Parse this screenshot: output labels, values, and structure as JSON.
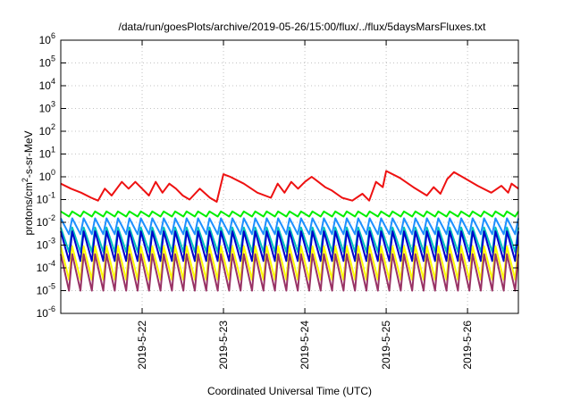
{
  "chart_data": {
    "type": "line",
    "title": "/data/run/goesPlots/archive/2019-05-26/15:00/flux/../flux/5daysMarsFluxes.txt",
    "xlabel": "Coordinated Universal Time (UTC)",
    "ylabel_main": "protons/cm",
    "ylabel_sup": "2",
    "ylabel_rest": "-s-sr-MeV",
    "y_scale": "log",
    "ylim": [
      1e-06,
      1000000.0
    ],
    "y_ticks": [
      {
        "base": "10",
        "exp": "-6",
        "value": 1e-06
      },
      {
        "base": "10",
        "exp": "-5",
        "value": 1e-05
      },
      {
        "base": "10",
        "exp": "-4",
        "value": 0.0001
      },
      {
        "base": "10",
        "exp": "-3",
        "value": 0.001
      },
      {
        "base": "10",
        "exp": "-2",
        "value": 0.01
      },
      {
        "base": "10",
        "exp": "-1",
        "value": 0.1
      },
      {
        "base": "10",
        "exp": "0",
        "value": 1
      },
      {
        "base": "10",
        "exp": "1",
        "value": 10
      },
      {
        "base": "10",
        "exp": "2",
        "value": 100
      },
      {
        "base": "10",
        "exp": "3",
        "value": 1000
      },
      {
        "base": "10",
        "exp": "4",
        "value": 10000
      },
      {
        "base": "10",
        "exp": "5",
        "value": 100000
      },
      {
        "base": "10",
        "exp": "6",
        "value": 1000000
      }
    ],
    "x_ticks": [
      "2019-5-22",
      "2019-5-23",
      "2019-5-24",
      "2019-5-25",
      "2019-5-26"
    ],
    "x_range": [
      "2019-05-21 00:00",
      "2019-05-26 15:00"
    ],
    "grid": true,
    "legend": "none",
    "series": [
      {
        "color": "#ee1111",
        "x": [
          "2019-05-21 00:00",
          "2019-05-21 03:00",
          "2019-05-21 06:00",
          "2019-05-21 09:00",
          "2019-05-21 11:00",
          "2019-05-21 13:00",
          "2019-05-21 15:00",
          "2019-05-21 18:00",
          "2019-05-21 20:00",
          "2019-05-21 22:00",
          "2019-05-22 00:00",
          "2019-05-22 02:00",
          "2019-05-22 04:00",
          "2019-05-22 06:00",
          "2019-05-22 08:00",
          "2019-05-22 10:00",
          "2019-05-22 12:00",
          "2019-05-22 14:00",
          "2019-05-22 17:00",
          "2019-05-22 20:00",
          "2019-05-22 22:00",
          "2019-05-23 00:00",
          "2019-05-23 02:00",
          "2019-05-23 06:00",
          "2019-05-23 10:00",
          "2019-05-23 14:00",
          "2019-05-23 16:00",
          "2019-05-23 18:00",
          "2019-05-23 20:00",
          "2019-05-23 22:00",
          "2019-05-24 00:00",
          "2019-05-24 02:00",
          "2019-05-24 04:00",
          "2019-05-24 06:00",
          "2019-05-24 08:00",
          "2019-05-24 11:00",
          "2019-05-24 14:00",
          "2019-05-24 17:00",
          "2019-05-24 19:00",
          "2019-05-24 21:00",
          "2019-05-24 23:00",
          "2019-05-25 00:00",
          "2019-05-25 04:00",
          "2019-05-25 08:00",
          "2019-05-25 12:00",
          "2019-05-25 14:00",
          "2019-05-25 16:00",
          "2019-05-25 18:00",
          "2019-05-25 20:00",
          "2019-05-25 23:00",
          "2019-05-26 03:00",
          "2019-05-26 07:00",
          "2019-05-26 10:00",
          "2019-05-26 12:00",
          "2019-05-26 13:00",
          "2019-05-26 15:00"
        ],
        "y": [
          0.5,
          0.3,
          0.2,
          0.12,
          0.09,
          0.3,
          0.15,
          0.6,
          0.3,
          0.6,
          0.3,
          0.15,
          0.6,
          0.2,
          0.5,
          0.3,
          0.15,
          0.1,
          0.3,
          0.12,
          0.08,
          1.3,
          1.0,
          0.5,
          0.2,
          0.12,
          0.5,
          0.2,
          0.6,
          0.3,
          0.6,
          1.0,
          0.6,
          0.35,
          0.25,
          0.12,
          0.09,
          0.18,
          0.09,
          0.6,
          0.35,
          1.8,
          0.9,
          0.35,
          0.15,
          0.35,
          0.18,
          0.8,
          1.6,
          0.9,
          0.4,
          0.2,
          0.4,
          0.2,
          0.5,
          0.3
        ]
      },
      {
        "color": "#00ee00",
        "x": [
          "2019-05-21 00:00",
          "2019-05-26 15:00"
        ],
        "y": [
          0.025,
          0.02
        ],
        "sawtooth": {
          "peak": 0.03,
          "trough": 0.018
        }
      },
      {
        "color": "#1e90ff",
        "x": [
          "2019-05-21 00:00",
          "2019-05-26 15:00"
        ],
        "y": [
          0.012,
          0.01
        ],
        "sawtooth": {
          "peak": 0.015,
          "trough": 0.003
        }
      },
      {
        "color": "#00bfbf",
        "x": [
          "2019-05-21 00:00",
          "2019-05-26 15:00"
        ],
        "y": [
          0.004,
          0.004
        ],
        "sawtooth": {
          "peak": 0.006,
          "trough": 0.0005
        }
      },
      {
        "color": "#0000cc",
        "x": [
          "2019-05-21 00:00",
          "2019-05-26 15:00"
        ],
        "y": [
          0.003,
          0.003
        ],
        "sawtooth": {
          "peak": 0.004,
          "trough": 0.0002
        }
      },
      {
        "color": "#ffff00",
        "x": [
          "2019-05-21 00:00",
          "2019-05-26 15:00"
        ],
        "y": [
          0.0008,
          0.0008
        ],
        "sawtooth": {
          "peak": 0.0009,
          "trough": 3e-05
        }
      },
      {
        "color": "#993366",
        "x": [
          "2019-05-21 00:00",
          "2019-05-26 15:00"
        ],
        "y": [
          0.0003,
          0.0002
        ],
        "sawtooth": {
          "peak": 0.0004,
          "trough": 1e-05
        }
      }
    ]
  }
}
